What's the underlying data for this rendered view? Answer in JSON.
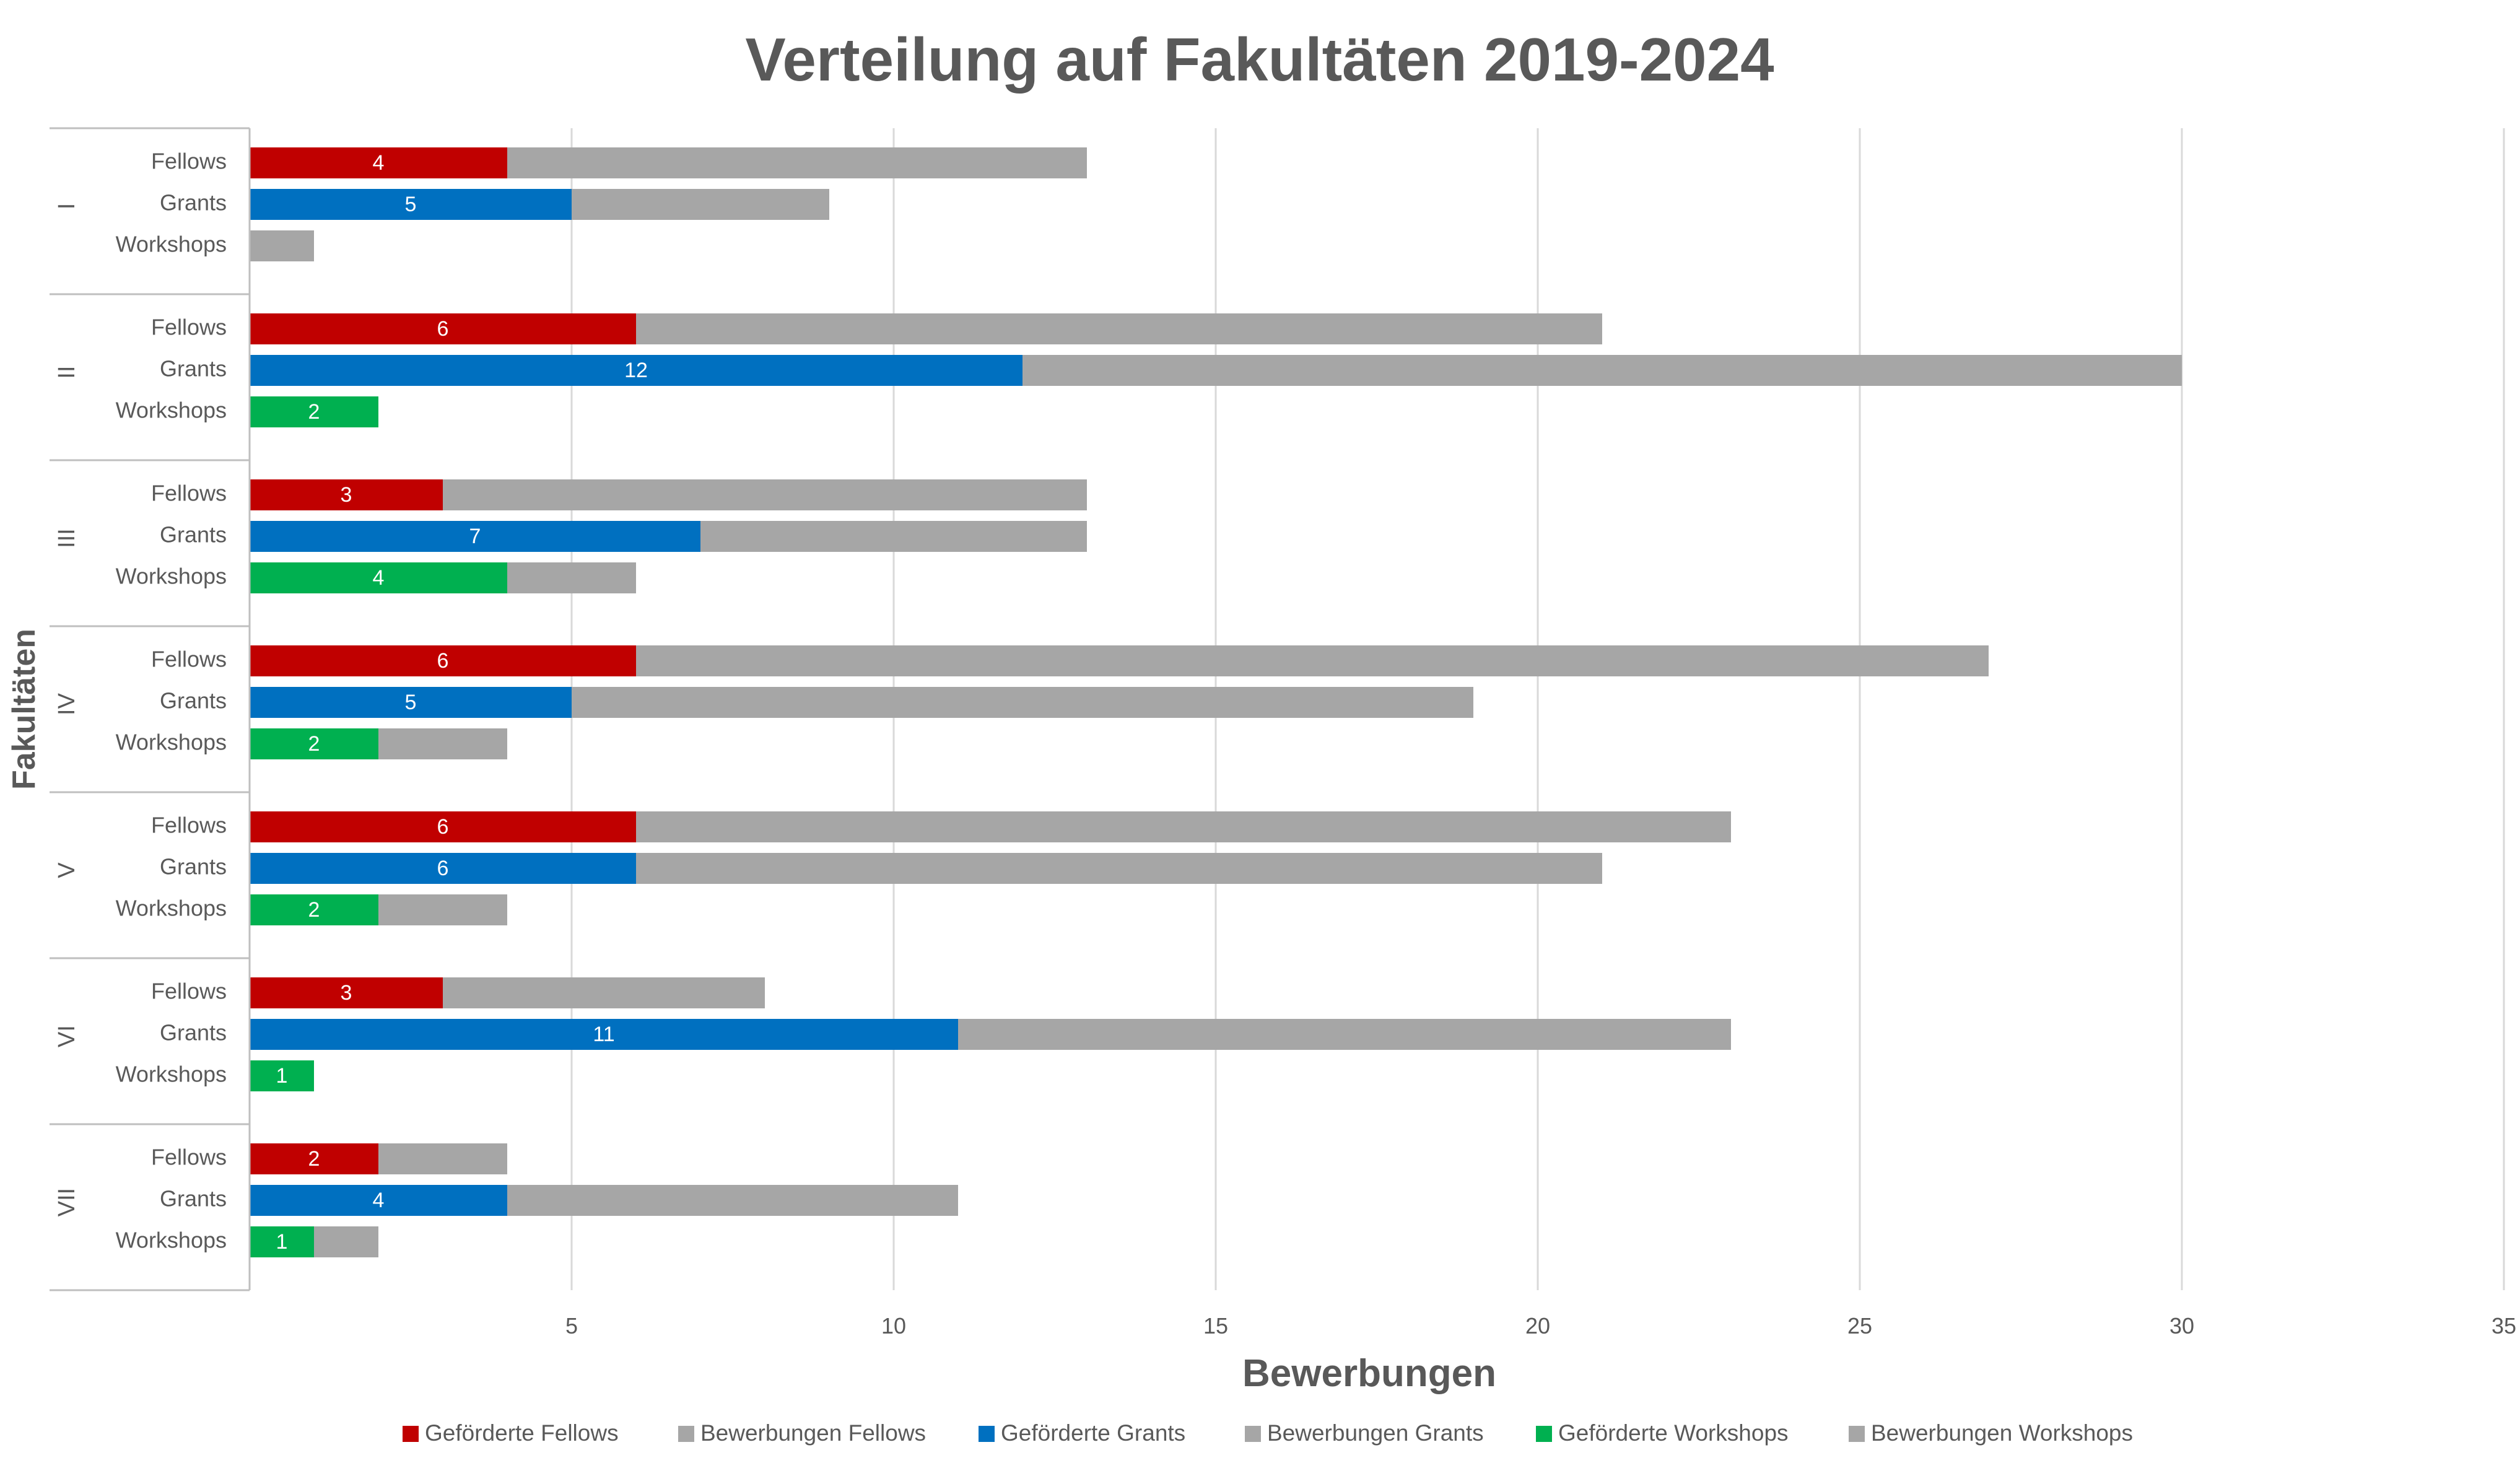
{
  "chart_data": {
    "type": "bar",
    "orientation": "horizontal",
    "stacking": "overlay",
    "title": "Verteilung auf Fakultäten 2019-2024",
    "xlabel": "Bewerbungen",
    "ylabel": "Fakultäten",
    "xlim": [
      0,
      35
    ],
    "xticks": [
      5,
      10,
      15,
      20,
      25,
      30,
      35
    ],
    "grid": "vertical",
    "legend_position": "bottom",
    "faculties": [
      "I",
      "II",
      "III",
      "IV",
      "V",
      "VI",
      "VII"
    ],
    "subcategories": [
      "Fellows",
      "Grants",
      "Workshops"
    ],
    "colors": {
      "fellows": "#c00000",
      "grants": "#0070c0",
      "workshops": "#00b050",
      "applications": "#a6a6a6",
      "grid": "#d9d9d9",
      "text": "#595959",
      "title": "#595959"
    },
    "series": [
      {
        "name": "Geförderte Fellows",
        "color": "#c00000",
        "values": [
          4,
          6,
          3,
          6,
          6,
          3,
          2
        ]
      },
      {
        "name": "Bewerbungen Fellows",
        "color": "#a6a6a6",
        "values": [
          13,
          21,
          13,
          27,
          23,
          8,
          4
        ]
      },
      {
        "name": "Geförderte Grants",
        "color": "#0070c0",
        "values": [
          5,
          12,
          7,
          5,
          6,
          11,
          4
        ]
      },
      {
        "name": "Bewerbungen Grants",
        "color": "#a6a6a6",
        "values": [
          9,
          30,
          13,
          19,
          21,
          23,
          11
        ]
      },
      {
        "name": "Geförderte Workshops",
        "color": "#00b050",
        "values": [
          0,
          2,
          4,
          2,
          2,
          1,
          1
        ]
      },
      {
        "name": "Bewerbungen Workshops",
        "color": "#a6a6a6",
        "values": [
          1,
          2,
          6,
          4,
          4,
          1,
          2
        ]
      }
    ],
    "legend": [
      "Geförderte Fellows",
      "Bewerbungen Fellows",
      "Geförderte Grants",
      "Bewerbungen Grants",
      "Geförderte Workshops",
      "Bewerbungen Workshops"
    ]
  }
}
